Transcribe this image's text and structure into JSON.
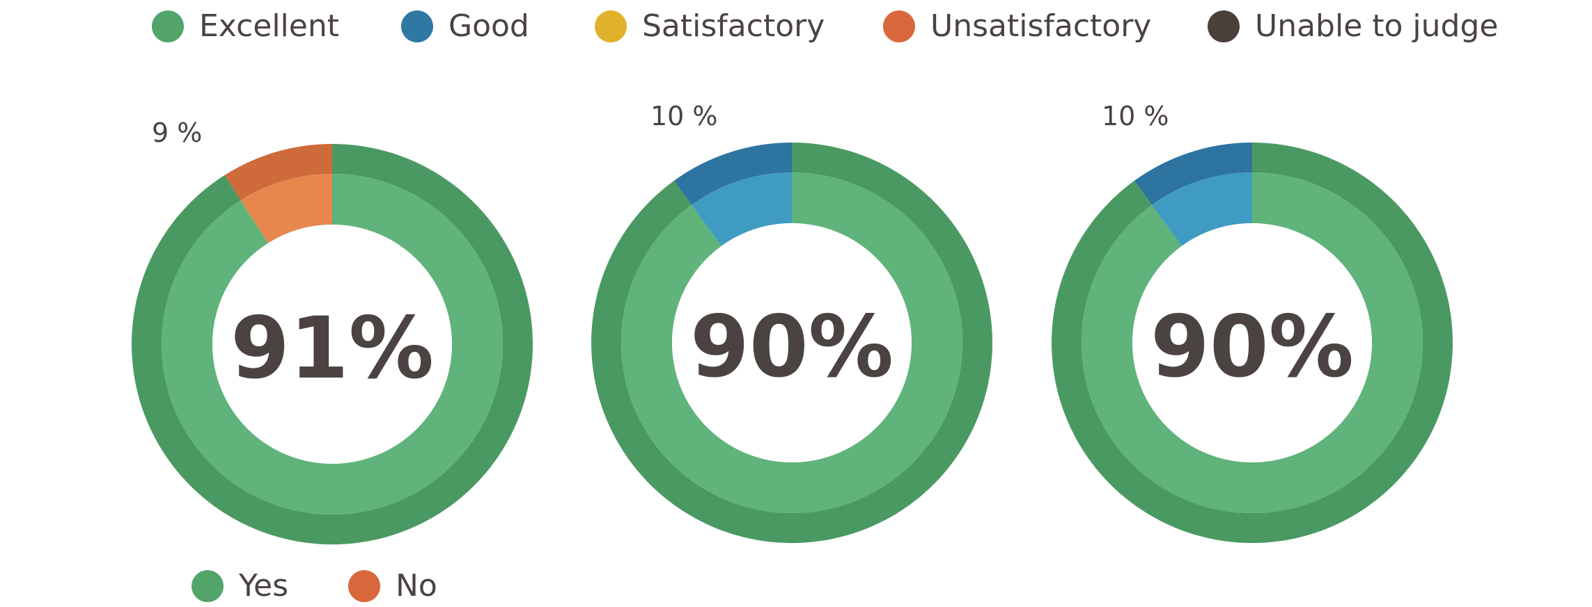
{
  "legend_top": [
    {
      "label": "Excellent",
      "color": "#53a46b"
    },
    {
      "label": "Good",
      "color": "#2f78a3"
    },
    {
      "label": "Satisfactory",
      "color": "#e0b12b"
    },
    {
      "label": "Unsatisfactory",
      "color": "#d9673c"
    },
    {
      "label": "Unable to judge",
      "color": "#4a3f3b"
    }
  ],
  "legend_bottom": [
    {
      "label": "Yes",
      "color": "#53a46b"
    },
    {
      "label": "No",
      "color": "#d9673c"
    }
  ],
  "chart_data": [
    {
      "type": "pie",
      "center_label": "91%",
      "outer_ring": [
        {
          "name": "Unsatisfactory",
          "value": 9,
          "color": "#cf6b3a"
        },
        {
          "name": "Excellent",
          "value": 91,
          "color": "#4b9962"
        }
      ],
      "inner_ring": [
        {
          "name": "No",
          "value": 9,
          "color": "#e7874e"
        },
        {
          "name": "Yes",
          "value": 91,
          "color": "#5fb37b"
        }
      ],
      "annotation": "9 %"
    },
    {
      "type": "pie",
      "center_label": "90%",
      "outer_ring": [
        {
          "name": "Good",
          "value": 10,
          "color": "#2e74a0"
        },
        {
          "name": "Excellent",
          "value": 90,
          "color": "#4b9962"
        }
      ],
      "inner_ring": [
        {
          "name": "No",
          "value": 10,
          "color": "#3f9bc2"
        },
        {
          "name": "Yes",
          "value": 90,
          "color": "#5fb37b"
        }
      ],
      "annotation": "10 %"
    },
    {
      "type": "pie",
      "center_label": "90%",
      "outer_ring": [
        {
          "name": "Good",
          "value": 10,
          "color": "#2e74a0"
        },
        {
          "name": "Excellent",
          "value": 90,
          "color": "#4b9962"
        }
      ],
      "inner_ring": [
        {
          "name": "No",
          "value": 10,
          "color": "#3f9bc2"
        },
        {
          "name": "Yes",
          "value": 90,
          "color": "#5fb37b"
        }
      ],
      "annotation": "10 %"
    }
  ]
}
